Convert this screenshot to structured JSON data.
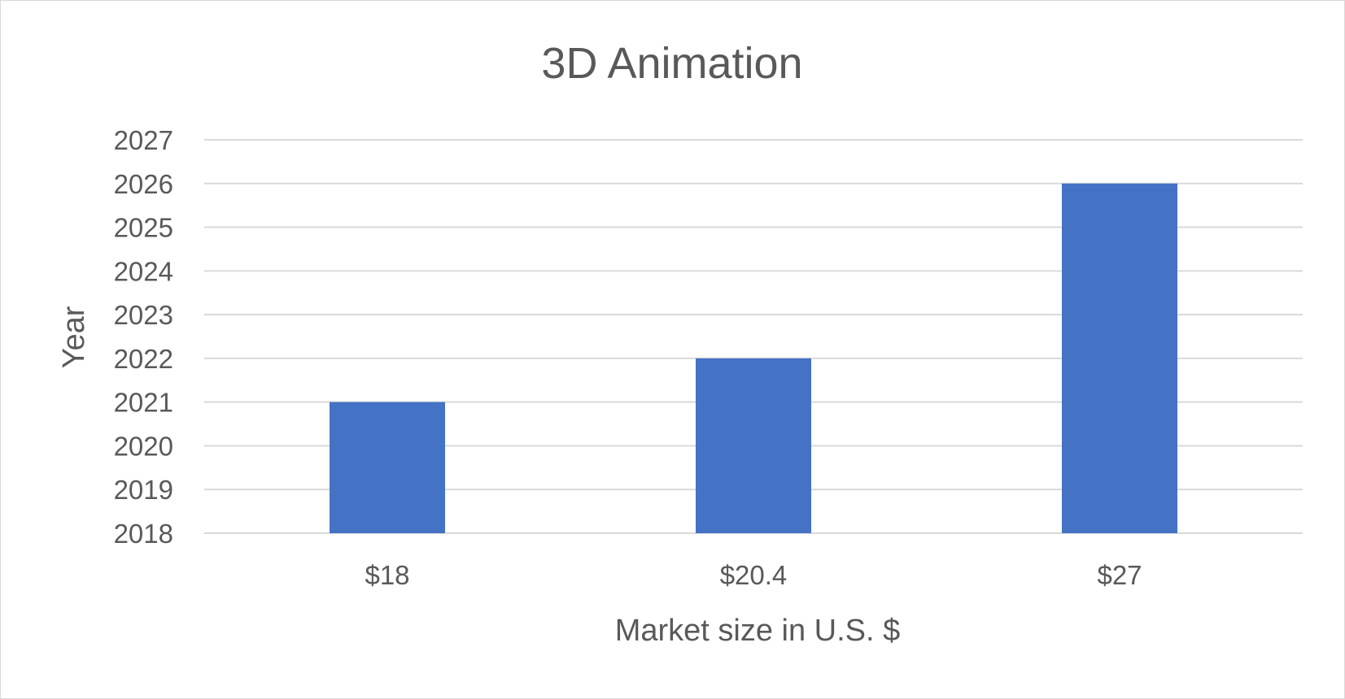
{
  "chart_data": {
    "type": "bar",
    "title": "3D Animation",
    "xlabel": "Market size in U.S. $",
    "ylabel": "Year",
    "categories": [
      "$18",
      "$20.4",
      "$27"
    ],
    "values": [
      2021,
      2022,
      2026
    ],
    "ylim": [
      2018,
      2027
    ],
    "yticks": [
      "2018",
      "2019",
      "2020",
      "2021",
      "2022",
      "2023",
      "2024",
      "2025",
      "2026",
      "2027"
    ],
    "grid": true,
    "legend": "none",
    "bar_color": "#4472C4"
  }
}
